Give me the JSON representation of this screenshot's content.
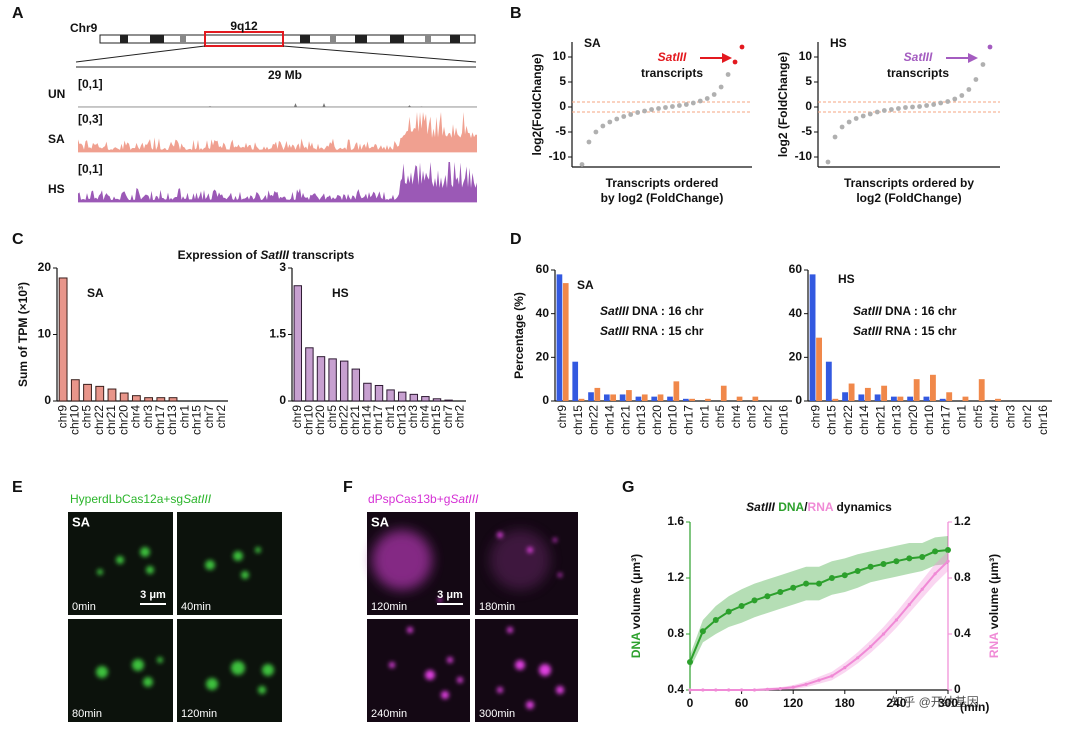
{
  "panel_labels": [
    "A",
    "B",
    "C",
    "D",
    "E",
    "F",
    "G"
  ],
  "genome_track": {
    "chromosome": "Chr9",
    "band": "9q12",
    "span": "29 Mb",
    "tracks": [
      {
        "name": "UN",
        "range": "[0,1]"
      },
      {
        "name": "SA",
        "range": "[0,3]"
      },
      {
        "name": "HS",
        "range": "[0,1]"
      }
    ]
  },
  "panel_c_title": [
    "Expression of ",
    "SatIII",
    " transcripts"
  ],
  "chart_data": [
    {
      "type": "scatter",
      "title": "SA",
      "y_label": "log2(FoldChange)",
      "x_label": [
        "Transcripts ordered",
        "by log2 (FoldChange)"
      ],
      "values": [
        -11.5,
        -7,
        -5,
        -3.8,
        -3,
        -2.4,
        -1.9,
        -1.5,
        -1.1,
        -0.8,
        -0.5,
        -0.3,
        -0.1,
        0.1,
        0.3,
        0.5,
        0.8,
        1.2,
        1.7,
        2.5,
        4,
        6.5,
        9,
        12
      ],
      "color": "#b0b0b0",
      "ylim": [
        -12,
        13
      ],
      "yticks": [
        -10,
        -5,
        0,
        5,
        10
      ],
      "reference_lines": [
        -1,
        1
      ],
      "reference_color": "#f4a582",
      "annotation": [
        "SatIII",
        "transcripts"
      ],
      "annotation_color": "#e3191f"
    },
    {
      "type": "scatter",
      "title": "HS",
      "y_label": "log2 (FoldChange)",
      "x_label": [
        "Transcripts ordered by",
        "log2 (FoldChange)"
      ],
      "values": [
        -11,
        -6,
        -4,
        -3,
        -2.3,
        -1.8,
        -1.4,
        -1,
        -0.7,
        -0.5,
        -0.3,
        -0.1,
        0,
        0.1,
        0.3,
        0.5,
        0.8,
        1.1,
        1.6,
        2.3,
        3.5,
        5.5,
        8.5,
        12
      ],
      "color": "#b0b0b0",
      "ylim": [
        -12,
        13
      ],
      "yticks": [
        -10,
        -5,
        0,
        5,
        10
      ],
      "reference_lines": [
        -1,
        1
      ],
      "reference_color": "#f4a582",
      "annotation": [
        "SatIII",
        "transcripts"
      ],
      "annotation_color": "#a45cc0"
    },
    {
      "type": "bar",
      "title": "SA",
      "y_label": "Sum of TPM (×10³)",
      "categories": [
        "chr9",
        "chr10",
        "chr5",
        "chr22",
        "chr21",
        "chr20",
        "chr4",
        "chr3",
        "chr17",
        "chr13",
        "chr1",
        "chr15",
        "chr7",
        "chr2"
      ],
      "values": [
        18.5,
        3.2,
        2.5,
        2.2,
        1.8,
        1.2,
        0.8,
        0.5,
        0.5,
        0.5,
        0,
        0,
        0,
        0
      ],
      "color": "#e8958a",
      "edge_color": "#3a1f1c",
      "ylim": [
        0,
        20
      ],
      "yticks": [
        0,
        10,
        20
      ]
    },
    {
      "type": "bar",
      "title": "HS",
      "categories": [
        "chr9",
        "chr10",
        "chr20",
        "chr5",
        "chr22",
        "chr21",
        "chr14",
        "chr17",
        "chr1",
        "chr13",
        "chr3",
        "chr4",
        "chr15",
        "chr7",
        "chr2"
      ],
      "values": [
        2.6,
        1.2,
        1.0,
        0.95,
        0.9,
        0.72,
        0.4,
        0.35,
        0.25,
        0.2,
        0.15,
        0.1,
        0.05,
        0.02,
        0
      ],
      "color": "#c7a0d0",
      "edge_color": "#2e1a33",
      "ylim": [
        0,
        3
      ],
      "yticks": [
        0,
        1.5,
        3
      ]
    },
    {
      "type": "bar",
      "title": "SA",
      "y_label": "Percentage (%)",
      "categories": [
        "chr9",
        "chr15",
        "chr22",
        "chr14",
        "chr21",
        "chr13",
        "chr20",
        "chr10",
        "chr17",
        "chr1",
        "chr5",
        "chr4",
        "chr3",
        "chr2",
        "chr16"
      ],
      "series": [
        {
          "name": "SatIII DNA : 16 chr",
          "color": "#3359e0",
          "values": [
            58,
            18,
            4,
            3,
            3,
            2,
            2,
            2,
            1,
            0,
            0,
            0,
            0,
            0,
            0
          ]
        },
        {
          "name": "SatIII RNA : 15 chr",
          "color": "#f0884a",
          "values": [
            54,
            1,
            6,
            3,
            5,
            3,
            3,
            9,
            1,
            1,
            7,
            2,
            2,
            0,
            0
          ]
        }
      ],
      "ylim": [
        0,
        60
      ],
      "yticks": [
        0,
        20,
        40,
        60
      ]
    },
    {
      "type": "bar",
      "title": "HS",
      "categories": [
        "chr9",
        "chr15",
        "chr22",
        "chr14",
        "chr21",
        "chr13",
        "chr20",
        "chr10",
        "chr17",
        "chr1",
        "chr5",
        "chr4",
        "chr3",
        "chr2",
        "chr16"
      ],
      "series": [
        {
          "name": "SatIII DNA : 16 chr",
          "color": "#3359e0",
          "values": [
            58,
            18,
            4,
            3,
            3,
            2,
            2,
            2,
            1,
            0,
            0,
            0,
            0,
            0,
            0
          ]
        },
        {
          "name": "SatIII RNA : 15 chr",
          "color": "#f0884a",
          "values": [
            29,
            1,
            8,
            6,
            7,
            2,
            10,
            12,
            4,
            2,
            10,
            1,
            0,
            0,
            0
          ]
        }
      ],
      "ylim": [
        0,
        60
      ],
      "yticks": [
        0,
        20,
        40,
        60
      ]
    },
    {
      "type": "line",
      "title": [
        "SatIII",
        " DNA",
        "/",
        "RNA",
        " dynamics"
      ],
      "title_colors": [
        "#111",
        "#2ca02c",
        "#111",
        "#f08ad6",
        "#111"
      ],
      "x": [
        0,
        15,
        30,
        45,
        60,
        75,
        90,
        105,
        120,
        135,
        150,
        165,
        180,
        195,
        210,
        225,
        240,
        255,
        270,
        285,
        300
      ],
      "xlim": [
        0,
        300
      ],
      "xticks": [
        0,
        60,
        120,
        180,
        240,
        300
      ],
      "x_label": "(min)",
      "y_label": [
        "DNA",
        " volume (μm³)"
      ],
      "y_label_colors": [
        "#2ca02c",
        "#111"
      ],
      "y2_label": [
        "RNA",
        " volume (μm³)"
      ],
      "y2_label_colors": [
        "#f08ad6",
        "#111"
      ],
      "ylim": [
        0.4,
        1.6
      ],
      "yticks": [
        0.4,
        0.8,
        1.2,
        1.6
      ],
      "y2lim": [
        0,
        1.2
      ],
      "y2ticks": [
        0,
        0.4,
        0.8,
        1.2
      ],
      "series": [
        {
          "color": "#2ca02c",
          "values": [
            0.6,
            0.82,
            0.9,
            0.96,
            1.0,
            1.04,
            1.07,
            1.1,
            1.13,
            1.16,
            1.16,
            1.2,
            1.22,
            1.25,
            1.28,
            1.3,
            1.32,
            1.34,
            1.35,
            1.39,
            1.4
          ],
          "errors": [
            0.05,
            0.08,
            0.1,
            0.11,
            0.12,
            0.12,
            0.12,
            0.12,
            0.12,
            0.12,
            0.12,
            0.12,
            0.12,
            0.12,
            0.11,
            0.11,
            0.11,
            0.11,
            0.1,
            0.1,
            0.1
          ]
        },
        {
          "axis": "y2",
          "color": "#f08ad6",
          "values": [
            0,
            0,
            0,
            0,
            0,
            0,
            0.005,
            0.01,
            0.02,
            0.04,
            0.07,
            0.1,
            0.16,
            0.23,
            0.31,
            0.4,
            0.5,
            0.61,
            0.72,
            0.83,
            0.92
          ],
          "errors": [
            0.005,
            0.005,
            0.005,
            0.005,
            0.005,
            0.005,
            0.01,
            0.01,
            0.015,
            0.02,
            0.025,
            0.03,
            0.035,
            0.04,
            0.045,
            0.05,
            0.055,
            0.06,
            0.065,
            0.07,
            0.07
          ]
        }
      ]
    }
  ],
  "microscopy": [
    {
      "label": [
        "HyperdLbCas12a+sg",
        "SatIII"
      ],
      "condition": "SA",
      "timepoints": [
        "0min",
        "40min",
        "80min",
        "120min"
      ],
      "scale_bar": "3 μm"
    },
    {
      "label": [
        "dPspCas13b+g",
        "SatIII"
      ],
      "condition": "SA",
      "timepoints": [
        "120min",
        "180min",
        "240min",
        "300min"
      ],
      "scale_bar": "3 μm"
    }
  ],
  "watermark": "知乎 @开纳基因"
}
